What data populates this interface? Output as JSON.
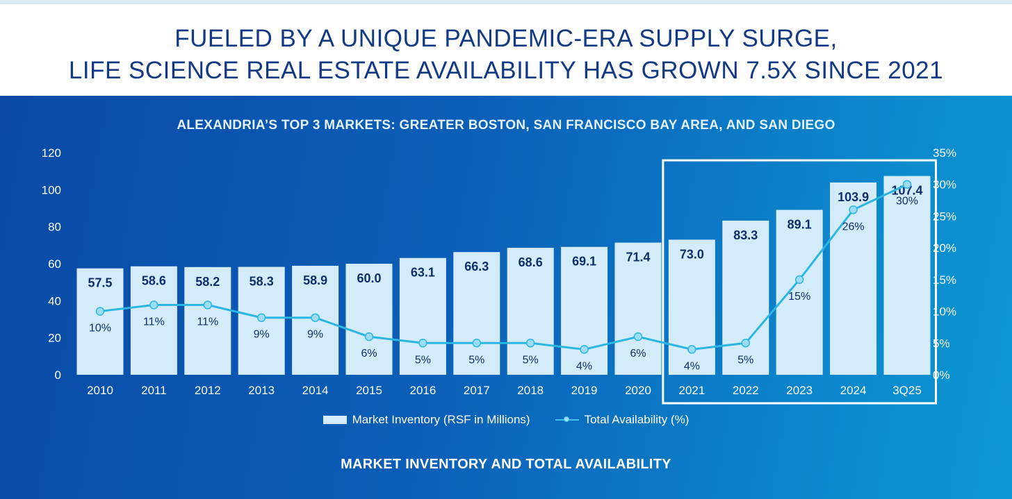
{
  "header": {
    "title_line1": "FUELED BY A UNIQUE PANDEMIC-ERA SUPPLY SURGE,",
    "title_line2": "LIFE SCIENCE REAL ESTATE AVAILABILITY HAS GROWN 7.5X SINCE 2021"
  },
  "chart_data": {
    "type": "bar",
    "title": "ALEXANDRIA’S TOP 3 MARKETS: GREATER BOSTON, SAN FRANCISCO BAY AREA, AND SAN DIEGO",
    "footer_title": "MARKET INVENTORY AND TOTAL AVAILABILITY",
    "categories": [
      "2010",
      "2011",
      "2012",
      "2013",
      "2014",
      "2015",
      "2016",
      "2017",
      "2018",
      "2019",
      "2020",
      "2021",
      "2022",
      "2023",
      "2024",
      "3Q25"
    ],
    "series": [
      {
        "name": "Market Inventory (RSF in Millions)",
        "type": "bar",
        "axis": "left",
        "values": [
          57.5,
          58.6,
          58.2,
          58.3,
          58.9,
          60.0,
          63.1,
          66.3,
          68.6,
          69.1,
          71.4,
          73.0,
          83.3,
          89.1,
          103.9,
          107.4
        ],
        "labels": [
          "57.5",
          "58.6",
          "58.2",
          "58.3",
          "58.9",
          "60.0",
          "63.1",
          "66.3",
          "68.6",
          "69.1",
          "71.4",
          "73.0",
          "83.3",
          "89.1",
          "103.9",
          "107.4"
        ]
      },
      {
        "name": "Total Availability (%)",
        "type": "line",
        "axis": "right",
        "values": [
          10,
          11,
          11,
          9,
          9,
          6,
          5,
          5,
          5,
          4,
          6,
          4,
          5,
          15,
          26,
          30
        ],
        "labels": [
          "10%",
          "11%",
          "11%",
          "9%",
          "9%",
          "6%",
          "5%",
          "5%",
          "5%",
          "4%",
          "6%",
          "4%",
          "5%",
          "15%",
          "26%",
          "30%"
        ]
      }
    ],
    "y_left": {
      "min": 0,
      "max": 120,
      "ticks": [
        "0",
        "20",
        "40",
        "60",
        "80",
        "100",
        "120"
      ]
    },
    "y_right": {
      "min": 0,
      "max": 35,
      "ticks": [
        "0%",
        "5%",
        "10%",
        "15%",
        "20%",
        "25%",
        "30%",
        "35%"
      ]
    },
    "highlight": {
      "from": "2021",
      "to": "3Q25"
    },
    "legend_position": "bottom",
    "grid": false
  },
  "colors": {
    "title": "#123a84",
    "bar_fill": "#d4ebfa",
    "bar_label": "#0f2f6b",
    "line": "#2bb6e2",
    "marker_fill": "#9fdcf2",
    "axis_text": "#ffffff"
  }
}
